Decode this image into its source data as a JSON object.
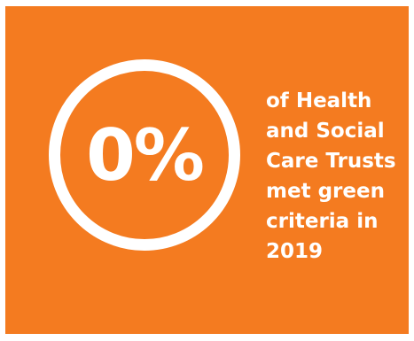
{
  "stat": {
    "value": "0%",
    "caption_lines": [
      "of Health",
      "and Social",
      "Care Trusts",
      "met green",
      "criteria in",
      "2019"
    ]
  },
  "colors": {
    "background": "#f47b20",
    "foreground": "#ffffff"
  }
}
